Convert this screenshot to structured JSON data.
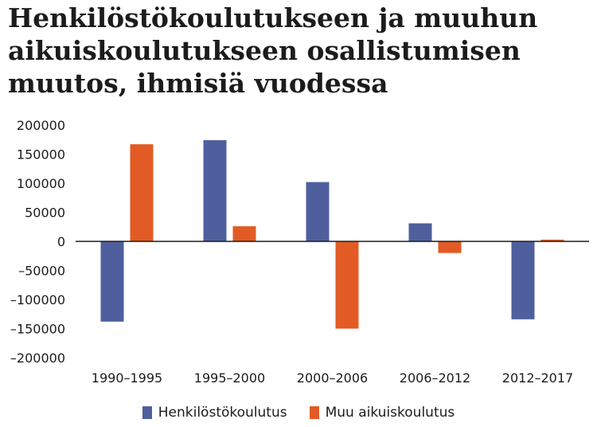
{
  "title_lines": [
    "Henkilöstökoulutukseen ja muuhun",
    "aikuiskoulutukseen osallistumisen",
    "muutos, ihmisiä vuodessa"
  ],
  "colors": {
    "henkilosto": "#4f5f9e",
    "muu": "#e35b24",
    "axis_text": "#1c1c1c"
  },
  "chart_data": {
    "type": "bar",
    "title": "Henkilöstökoulutukseen ja muuhun aikuiskoulutukseen osallistumisen muutos, ihmisiä vuodessa",
    "categories": [
      "1990–1995",
      "1995–2000",
      "2000–2006",
      "2006–2012",
      "2012–2017"
    ],
    "series": [
      {
        "name": "Henkilöstökoulutus",
        "values": [
          -138000,
          174000,
          102000,
          31000,
          -134000
        ]
      },
      {
        "name": "Muu aikuiskoulutus",
        "values": [
          167000,
          26000,
          -150000,
          -20000,
          3000
        ]
      }
    ],
    "ylim": [
      -200000,
      200000
    ],
    "yticks": [
      200000,
      150000,
      100000,
      50000,
      0,
      -50000,
      -100000,
      -150000,
      -200000
    ],
    "ytick_labels": [
      "200000",
      "150000",
      "100000",
      "50000",
      "0",
      "–50000",
      "–100000",
      "–150000",
      "–200000"
    ],
    "xlabel": "",
    "ylabel": "",
    "grid": false,
    "legend_position": "bottom"
  }
}
